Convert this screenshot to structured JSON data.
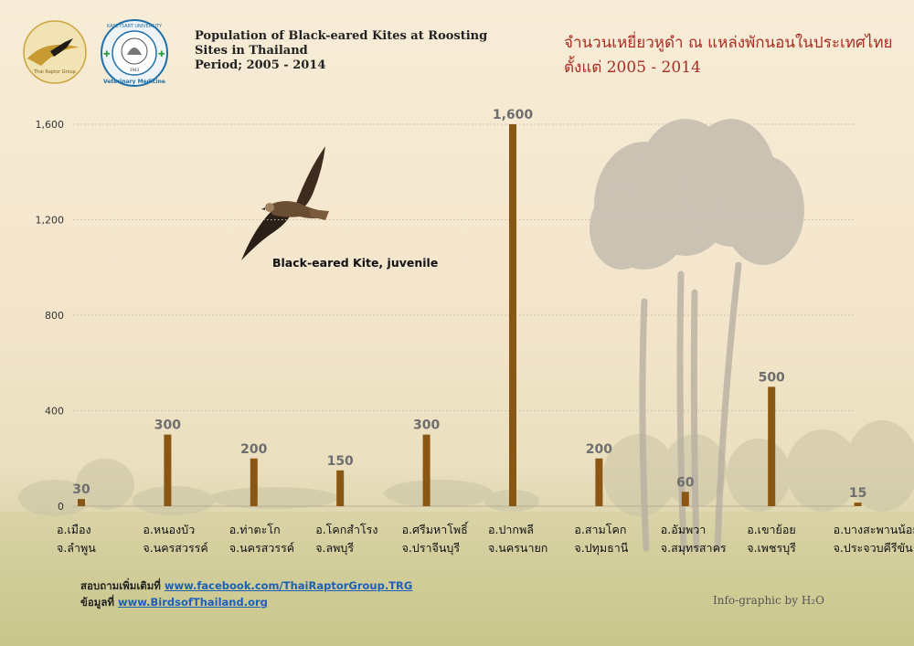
{
  "header": {
    "title_en_lines": [
      "Population of Black-eared Kites at Roosting",
      "Sites in Thailand",
      "Period; 2005 - 2014"
    ],
    "title_th_lines": [
      "จำนวนเหยี่ยวหูดำ ณ แหล่งพักนอนในประเทศไทย",
      "ตั้งแต่ 2005 - 2014"
    ],
    "logo_left_text": "Thai Raptor Group",
    "logo_right_text_top": "KASETSART UNIVERSITY",
    "logo_right_text_bottom": "Veterinary Medicine",
    "logo_right_year": "1943"
  },
  "photo_caption": "Black-eared Kite, juvenile",
  "footer": {
    "more_info_label": "สอบถามเพิ่มเติมที่",
    "more_info_link": "www.facebook.com/ThaiRaptorGroup.TRG",
    "data_label": "ข้อมูลที่",
    "data_link": "www.BirdsofThailand.org",
    "credit": "Info-graphic by H₂O"
  },
  "colors": {
    "bar": "#8a5614",
    "value_label": "#6e6e6e",
    "title_th": "#a82c22",
    "link": "#1d5fb6"
  },
  "chart_data": {
    "type": "bar",
    "categories": [
      [
        "อ.เมือง",
        "จ.ลำพูน"
      ],
      [
        "อ.หนองบัว",
        "จ.นครสวรรค์"
      ],
      [
        "อ.ท่าตะโก",
        "จ.นครสวรรค์"
      ],
      [
        "อ.โคกสำโรง",
        "จ.ลพบุรี"
      ],
      [
        "อ.ศรีมหาโพธิ์",
        "จ.ปราจีนบุรี"
      ],
      [
        "อ.ปากพลี",
        "จ.นครนายก"
      ],
      [
        "อ.สามโคก",
        "จ.ปทุมธานี"
      ],
      [
        "อ.อัมพวา",
        "จ.สมุทรสาคร"
      ],
      [
        "อ.เขาย้อย",
        "จ.เพชรบุรี"
      ],
      [
        "อ.บางสะพานน้อย",
        "จ.ประจวบคีรีขันธ์"
      ]
    ],
    "values": [
      30,
      300,
      200,
      150,
      300,
      1600,
      200,
      60,
      500,
      15
    ],
    "value_labels": [
      "30",
      "300",
      "200",
      "150",
      "300",
      "1,600",
      "200",
      "60",
      "500",
      "15"
    ],
    "yticks": [
      0,
      400,
      800,
      1200,
      1600
    ],
    "ytick_labels": [
      "0",
      "400",
      "800",
      "1,200",
      "1,600"
    ],
    "ylim": [
      0,
      1600
    ],
    "grid": true,
    "title": "",
    "xlabel": "",
    "ylabel": ""
  }
}
